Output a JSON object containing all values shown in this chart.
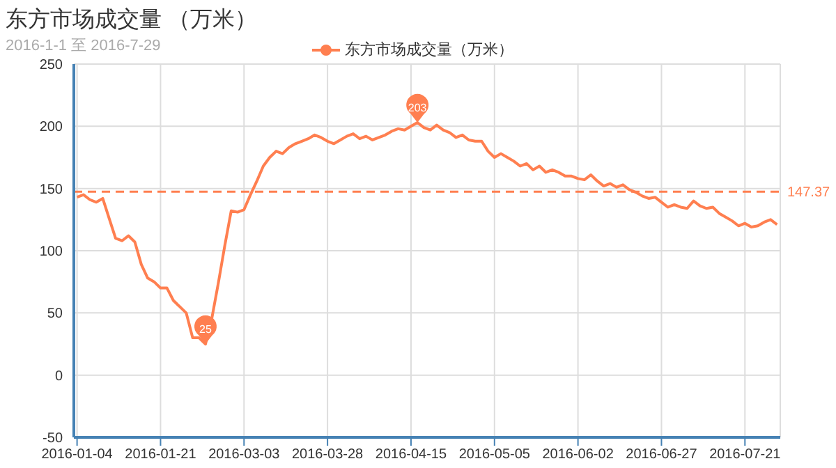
{
  "chart_data": {
    "type": "line",
    "title": "东方市场成交量 （万米）",
    "subtitle": "2016-1-1 至 2016-7-29",
    "categories": [
      "2016-01-04",
      null,
      null,
      null,
      null,
      null,
      null,
      null,
      null,
      null,
      null,
      null,
      null,
      "2016-01-21",
      null,
      null,
      null,
      null,
      null,
      null,
      null,
      null,
      null,
      null,
      null,
      null,
      "2016-03-03",
      null,
      null,
      null,
      null,
      null,
      null,
      null,
      null,
      null,
      null,
      null,
      null,
      "2016-03-28",
      null,
      null,
      null,
      null,
      null,
      null,
      null,
      null,
      null,
      null,
      null,
      null,
      "2016-04-15",
      null,
      null,
      null,
      null,
      null,
      null,
      null,
      null,
      null,
      null,
      null,
      null,
      "2016-05-05",
      null,
      null,
      null,
      null,
      null,
      null,
      null,
      null,
      null,
      null,
      null,
      null,
      "2016-06-02",
      null,
      null,
      null,
      null,
      null,
      null,
      null,
      null,
      null,
      null,
      null,
      null,
      "2016-06-27",
      null,
      null,
      null,
      null,
      null,
      null,
      null,
      null,
      null,
      null,
      null,
      null,
      "2016-07-21",
      null,
      null,
      null,
      null,
      null
    ],
    "series": [
      {
        "name": "东方市场成交量（万米）",
        "color": "#ff7f50",
        "values": [
          143,
          145,
          141,
          139,
          142,
          126,
          110,
          108,
          112,
          107,
          89,
          78,
          75,
          70,
          70,
          60,
          55,
          50,
          30,
          30,
          25,
          46,
          74,
          104,
          132,
          131,
          133,
          145,
          156,
          168,
          175,
          180,
          178,
          183,
          186,
          188,
          190,
          193,
          191,
          188,
          186,
          189,
          192,
          194,
          190,
          192,
          189,
          191,
          193,
          196,
          198,
          197,
          200,
          203,
          199,
          197,
          201,
          197,
          195,
          191,
          193,
          189,
          188,
          188,
          180,
          175,
          178,
          175,
          172,
          168,
          170,
          165,
          168,
          163,
          165,
          163,
          160,
          160,
          158,
          157,
          161,
          156,
          152,
          154,
          151,
          153,
          149,
          147,
          144,
          142,
          143,
          139,
          135,
          137,
          135,
          134,
          140,
          136,
          134,
          135,
          130,
          127,
          124,
          120,
          122,
          119,
          120,
          123,
          125,
          121
        ]
      }
    ],
    "ylim": [
      -50,
      250
    ],
    "yticks": [
      -50,
      0,
      50,
      100,
      150,
      200,
      250
    ],
    "grid": true,
    "legend": "top",
    "line_style": "solid",
    "ref_lines": [
      {
        "axis": "y",
        "value": 147.37,
        "label": "147.37",
        "color": "#ff7f50",
        "line_style": "dashed"
      }
    ],
    "annotations": [
      {
        "text": "25",
        "y": 25
      },
      {
        "text": "203",
        "y": 203
      }
    ]
  }
}
